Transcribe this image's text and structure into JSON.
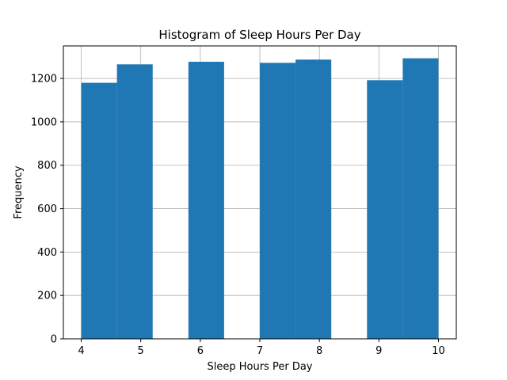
{
  "chart_data": {
    "type": "bar",
    "title": "Histogram of Sleep Hours Per Day",
    "xlabel": "Sleep Hours Per Day",
    "ylabel": "Frequency",
    "xlim": [
      3.7,
      10.3
    ],
    "ylim": [
      0,
      1350
    ],
    "xticks": [
      4,
      5,
      6,
      7,
      8,
      9,
      10
    ],
    "yticks": [
      0,
      200,
      400,
      600,
      800,
      1000,
      1200
    ],
    "grid": true,
    "bar_color": "#1f77b4",
    "grid_color": "#b0b0b0",
    "bins": [
      {
        "x0": 4.0,
        "x1": 4.6,
        "value": 1180
      },
      {
        "x0": 4.6,
        "x1": 5.2,
        "value": 1265
      },
      {
        "x0": 5.2,
        "x1": 5.8,
        "value": 0
      },
      {
        "x0": 5.8,
        "x1": 6.4,
        "value": 1277
      },
      {
        "x0": 6.4,
        "x1": 7.0,
        "value": 0
      },
      {
        "x0": 7.0,
        "x1": 7.6,
        "value": 1272
      },
      {
        "x0": 7.6,
        "x1": 8.2,
        "value": 1287
      },
      {
        "x0": 8.2,
        "x1": 8.8,
        "value": 0
      },
      {
        "x0": 8.8,
        "x1": 9.4,
        "value": 1192
      },
      {
        "x0": 9.4,
        "x1": 10.0,
        "value": 1293
      }
    ]
  }
}
